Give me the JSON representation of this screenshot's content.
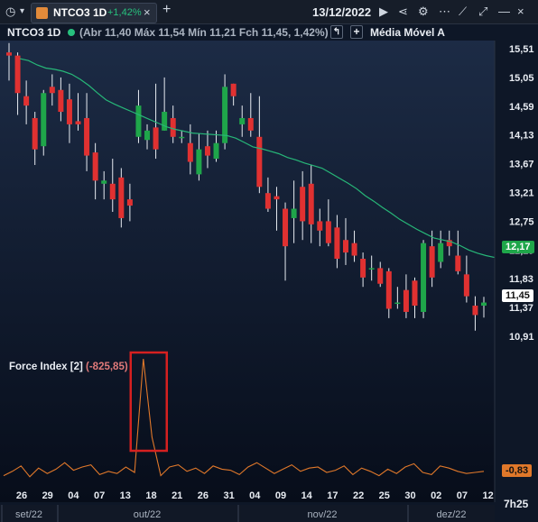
{
  "toolbar": {
    "symbol": "NTCO3 1D",
    "change": "+1,42%",
    "date": "13/12/2022"
  },
  "legend": {
    "symbol": "NTCO3 1D",
    "abr_label": "Abr",
    "abr": "11,40",
    "max_label": "Máx",
    "max": "11,54",
    "min_label": "Mín",
    "min": "11,21",
    "fch_label": "Fch",
    "fch": "11,45",
    "pct": "1,42%",
    "ma_label": "Média Móvel A"
  },
  "force_index": {
    "label": "Force Index [2]",
    "value": "(-825,85)",
    "current": "-0,83"
  },
  "price_labels": {
    "ma_current": "12,17",
    "close_current": "11,45"
  },
  "time_label": "7h25",
  "colors": {
    "up": "#1fa64a",
    "down": "#e03131",
    "ma": "#27b778",
    "force": "#e0782a",
    "highlight": "#d62020"
  },
  "chart_data": {
    "type": "candlestick",
    "y_ticks": [
      "15,51",
      "15,05",
      "14,59",
      "14,13",
      "13,67",
      "13,21",
      "12,75",
      "12,29",
      "11,83",
      "11,37",
      "10,91"
    ],
    "y_range": [
      10.91,
      15.51
    ],
    "x_ticks": [
      "26",
      "29",
      "04",
      "07",
      "13",
      "18",
      "21",
      "26",
      "31",
      "04",
      "09",
      "14",
      "17",
      "22",
      "25",
      "30",
      "02",
      "07",
      "12"
    ],
    "months": [
      "set/22",
      "out/22",
      "nov/22",
      "dez/22"
    ],
    "candles": [
      [
        15.45,
        15.4,
        15.6,
        15.0
      ],
      [
        15.4,
        14.8,
        15.45,
        14.45
      ],
      [
        14.75,
        14.6,
        15.0,
        14.3
      ],
      [
        14.4,
        13.9,
        14.5,
        13.65
      ],
      [
        13.95,
        14.8,
        14.85,
        13.8
      ],
      [
        14.9,
        14.8,
        15.1,
        14.6
      ],
      [
        14.85,
        14.5,
        15.05,
        14.35
      ],
      [
        14.7,
        14.3,
        14.95,
        14.0
      ],
      [
        14.35,
        14.3,
        14.8,
        14.2
      ],
      [
        14.4,
        13.8,
        14.8,
        13.55
      ],
      [
        13.85,
        13.4,
        14.0,
        13.1
      ],
      [
        13.35,
        13.4,
        13.55,
        13.1
      ],
      [
        13.35,
        13.1,
        13.75,
        12.9
      ],
      [
        13.45,
        12.8,
        13.6,
        12.65
      ],
      [
        13.1,
        13.0,
        13.35,
        12.75
      ],
      [
        14.1,
        14.6,
        14.85,
        14.0
      ],
      [
        14.05,
        14.2,
        14.3,
        13.9
      ],
      [
        14.25,
        13.9,
        14.95,
        13.75
      ],
      [
        14.2,
        14.5,
        15.05,
        14.2
      ],
      [
        14.4,
        14.1,
        14.6,
        14.0
      ],
      [
        14.1,
        14.1,
        14.2,
        14.0
      ],
      [
        14.0,
        13.7,
        14.3,
        13.5
      ],
      [
        13.5,
        13.9,
        14.15,
        13.4
      ],
      [
        13.95,
        13.8,
        14.2,
        13.6
      ],
      [
        13.75,
        14.0,
        14.2,
        13.7
      ],
      [
        14.0,
        14.9,
        15.1,
        13.9
      ],
      [
        14.95,
        14.75,
        14.95,
        14.6
      ],
      [
        14.3,
        14.4,
        14.6,
        14.1
      ],
      [
        14.4,
        14.2,
        14.8,
        14.1
      ],
      [
        14.1,
        13.3,
        14.75,
        13.2
      ],
      [
        13.2,
        12.95,
        13.45,
        12.9
      ],
      [
        13.15,
        13.1,
        13.3,
        12.6
      ],
      [
        12.95,
        12.35,
        13.05,
        11.8
      ],
      [
        12.8,
        12.95,
        13.4,
        12.4
      ],
      [
        13.3,
        12.75,
        13.55,
        12.45
      ],
      [
        13.35,
        12.7,
        13.65,
        12.4
      ],
      [
        12.75,
        12.6,
        12.95,
        12.35
      ],
      [
        12.75,
        12.4,
        13.1,
        12.35
      ],
      [
        12.65,
        12.15,
        12.85,
        12.0
      ],
      [
        12.45,
        12.25,
        12.8,
        12.05
      ],
      [
        12.4,
        12.2,
        12.6,
        12.1
      ],
      [
        12.15,
        11.85,
        12.25,
        11.7
      ],
      [
        12.0,
        12.0,
        12.2,
        11.8
      ],
      [
        12.0,
        11.75,
        12.1,
        11.7
      ],
      [
        11.95,
        11.35,
        12.0,
        11.2
      ],
      [
        11.45,
        11.45,
        11.7,
        11.35
      ],
      [
        11.65,
        11.3,
        11.9,
        11.2
      ],
      [
        11.8,
        11.4,
        11.85,
        11.2
      ],
      [
        11.3,
        12.4,
        12.45,
        11.2
      ],
      [
        12.35,
        11.85,
        12.6,
        11.7
      ],
      [
        12.1,
        12.4,
        12.6,
        12.0
      ],
      [
        12.45,
        12.35,
        12.6,
        12.2
      ],
      [
        12.2,
        11.95,
        12.6,
        11.9
      ],
      [
        11.9,
        11.55,
        12.2,
        11.45
      ],
      [
        11.4,
        11.25,
        11.55,
        11.0
      ],
      [
        11.4,
        11.45,
        11.54,
        11.21
      ]
    ],
    "moving_average": [
      15.35,
      15.32,
      15.25,
      15.2,
      15.18,
      15.15,
      15.1,
      15.02,
      14.92,
      14.8,
      14.69,
      14.62,
      14.56,
      14.5,
      14.44,
      14.38,
      14.32,
      14.26,
      14.22,
      14.19,
      14.16,
      14.15,
      14.14,
      14.13,
      14.12,
      14.08,
      14.01,
      13.94,
      13.91,
      13.87,
      13.83,
      13.77,
      13.73,
      13.68,
      13.64,
      13.6,
      13.52,
      13.44,
      13.36,
      13.27,
      13.16,
      13.07,
      12.97,
      12.88,
      12.78,
      12.7,
      12.62,
      12.55,
      12.48,
      12.45,
      12.42,
      12.36,
      12.29,
      12.24,
      12.2,
      12.17
    ],
    "force_index_values": [
      -2,
      -6,
      -11,
      -1,
      -9,
      -4,
      -8,
      -14,
      -7,
      -10,
      -12,
      -3,
      -6,
      -4,
      -10,
      -5,
      -8,
      -7,
      -2,
      -10,
      -12,
      -6,
      -9,
      -4,
      -11,
      -8,
      -7,
      -3,
      -10,
      -14,
      -9,
      -4,
      -8,
      -12,
      -6,
      -9,
      -10,
      -5,
      -7,
      -11,
      -3,
      -9,
      -6,
      -2,
      -8,
      -4,
      -10,
      -13,
      -5,
      -3,
      -11,
      -9,
      -6,
      -4,
      -5,
      -6
    ],
    "force_spike_index": 16
  }
}
